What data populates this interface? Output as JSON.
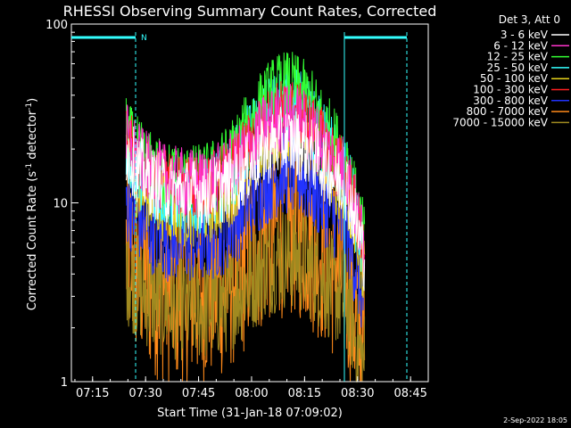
{
  "chart_data": {
    "type": "line",
    "title": "RHESSI Observing Summary Count Rates, Corrected",
    "xlabel": "Start Time (31-Jan-18 07:09:02)",
    "ylabel_main": "Corrected Count Rate (s",
    "ylabel_sup1": "-1",
    "ylabel_mid": " detector",
    "ylabel_sup2": "-1",
    "ylabel_end": ")",
    "y_scale": "log",
    "ylim": [
      1,
      100
    ],
    "xlim": [
      "07:09",
      "08:50"
    ],
    "x_ticks": [
      "07:15",
      "07:30",
      "07:45",
      "08:00",
      "08:15",
      "08:30",
      "08:45"
    ],
    "y_ticks": [
      "1",
      "10",
      "100"
    ],
    "legend_title": "Det 3, Att 0",
    "legend_placement": "right",
    "timestamp": "2-Sep-2022 18:05",
    "night_flag": "N",
    "grid": false,
    "series": [
      {
        "name": "3 - 6 keV",
        "color": "#ffffff",
        "peak": 22,
        "start": 18,
        "valley": 11,
        "noise": 0.2
      },
      {
        "name": "6 - 12 keV",
        "color": "#ff33cc",
        "peak": 30,
        "start": 22,
        "valley": 12.5,
        "noise": 0.2
      },
      {
        "name": "12 - 25 keV",
        "color": "#33ff33",
        "peak": 45,
        "start": 24,
        "valley": 13,
        "noise": 0.2
      },
      {
        "name": "25 - 50 keV",
        "color": "#33ffff",
        "peak": 36,
        "start": 21,
        "valley": 10.5,
        "noise": 0.22
      },
      {
        "name": "50 - 100 keV",
        "color": "#e6d21a",
        "peak": 28,
        "start": 17,
        "valley": 9,
        "noise": 0.22
      },
      {
        "name": "100 - 300 keV",
        "color": "#ff2020",
        "peak": 33,
        "start": 23,
        "valley": 12,
        "noise": 0.18
      },
      {
        "name": "300 - 800 keV",
        "color": "#2233ff",
        "peak": 15,
        "start": 9,
        "valley": 6,
        "noise": 0.25
      },
      {
        "name": "800 - 7000 keV",
        "color": "#ff8a1a",
        "peak": 8,
        "start": 4.5,
        "valley": 3.2,
        "noise": 0.55
      },
      {
        "name": "7000 - 15000 keV",
        "color": "#a08a20",
        "peak": 5,
        "start": 3.5,
        "valley": 2.5,
        "noise": 0.3
      }
    ]
  }
}
